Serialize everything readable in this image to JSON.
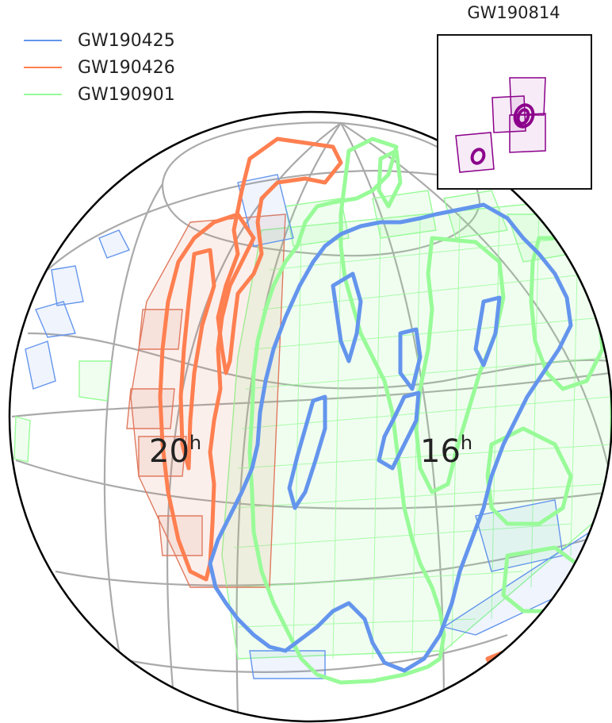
{
  "legend": {
    "items": [
      {
        "label": "GW190425",
        "color": "#6495ed"
      },
      {
        "label": "GW190426",
        "color": "#ff7f50"
      },
      {
        "label": "GW190901",
        "color": "#98fb98"
      }
    ]
  },
  "inset": {
    "title": "GW190814",
    "color": "#8b008b"
  },
  "globe": {
    "ra_labels": [
      {
        "hours": "20",
        "unit": "h"
      },
      {
        "hours": "16",
        "unit": "h"
      }
    ],
    "graticule_color": "#aaaaaa",
    "outline_color": "#000000"
  }
}
